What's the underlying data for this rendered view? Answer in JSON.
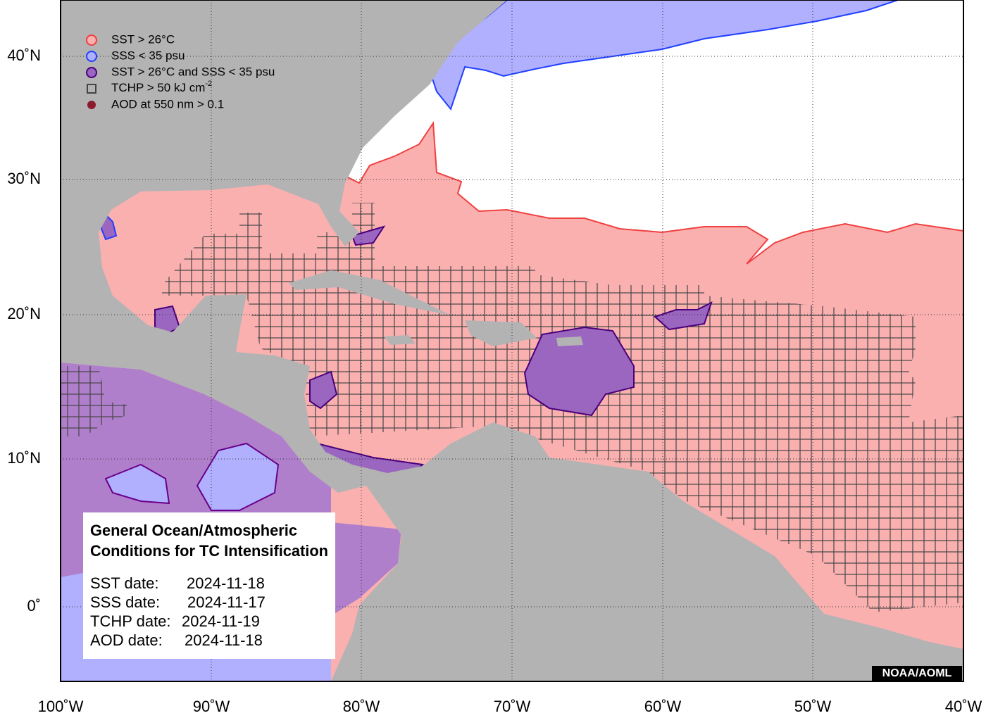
{
  "map": {
    "legend": [
      "SST > 26°C",
      "SSS < 35 psu",
      "SST > 26°C and SSS < 35 psu",
      {
        "text": "TCHP > 50 kJ cm",
        "superscript": "-2"
      },
      "AOD at 550 nm > 0.1"
    ],
    "x_axis_labels": [
      "100˚W",
      "90˚W",
      "80˚W",
      "70˚W",
      "60˚W",
      "50˚W",
      "40˚W"
    ],
    "y_axis_labels": [
      "40˚N",
      "30˚N",
      "20˚N",
      "10˚N",
      "0˚"
    ],
    "info_box": {
      "title_lines": [
        "General Ocean/Atmospheric",
        "Conditions for TC Intensification"
      ],
      "dates": [
        {
          "label": "SST date:",
          "value": "2024-11-18"
        },
        {
          "label": "SSS date:",
          "value": "2024-11-17"
        },
        {
          "label": "TCHP date:",
          "value": "2024-11-19"
        },
        {
          "label": "AOD date:",
          "value": "2024-11-18"
        }
      ]
    },
    "credit": "NOAA/AOML"
  }
}
